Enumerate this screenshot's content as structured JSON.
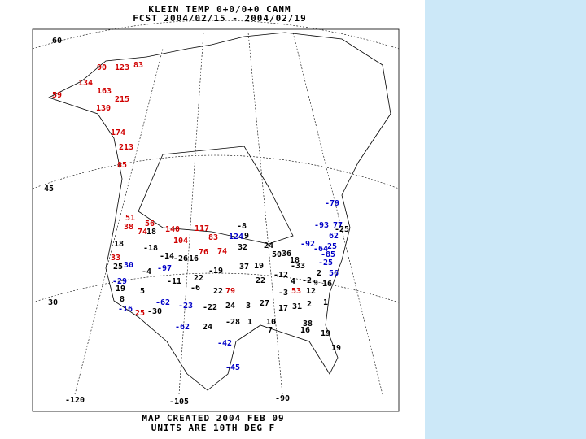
{
  "header": {
    "lines": [
      "KLEIN TEMP 0+0/0+0 CANM",
      "FCST 2004/02/15 - 2004/02/19"
    ]
  },
  "latitude_labels": [
    "60",
    "45",
    "30"
  ],
  "longitude_labels": [
    "-120",
    "-105",
    "-90"
  ],
  "stations": [
    90,
    123,
    83,
    134,
    163,
    59,
    215,
    130,
    174,
    213,
    85,
    51,
    56,
    38,
    74,
    140,
    117,
    104,
    83,
    76,
    74,
    33,
    79,
    53,
    25,
    -79,
    -93,
    77,
    62,
    -92,
    -64,
    25,
    -85,
    -25,
    56,
    30,
    -97,
    -29,
    -16,
    -62,
    -23,
    -62,
    -42,
    -45,
    124,
    -8,
    18,
    9,
    18,
    -18,
    32,
    24,
    -14,
    -26,
    16,
    50,
    36,
    18,
    -4,
    37,
    19,
    -19,
    -33,
    -12,
    25,
    22,
    -11,
    9,
    2,
    22,
    -6,
    4,
    -2,
    16,
    19,
    5,
    22,
    -3,
    -25,
    8,
    12,
    24,
    3,
    2,
    17,
    31,
    1,
    -22,
    27,
    -30,
    -28,
    10,
    24,
    1,
    7,
    19,
    19,
    16,
    38
  ],
  "footer": {
    "lines": [
      "MAP CREATED 2004 FEB 09",
      "UNITS ARE 10TH DEG F"
    ]
  }
}
